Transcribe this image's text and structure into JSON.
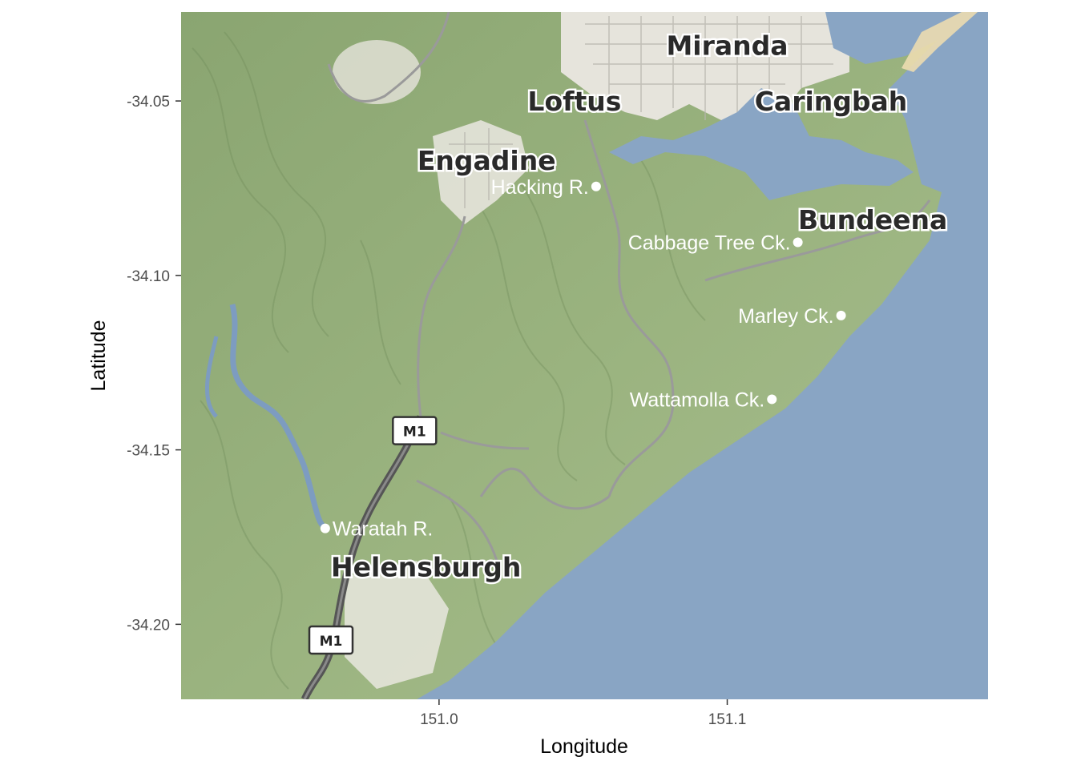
{
  "axes": {
    "x_title": "Longitude",
    "y_title": "Latitude",
    "x_ticks": [
      {
        "value": 151.0,
        "label": "151.0"
      },
      {
        "value": 151.1,
        "label": "151.1"
      }
    ],
    "y_ticks": [
      {
        "value": -34.05,
        "label": "-34.05"
      },
      {
        "value": -34.1,
        "label": "-34.10"
      },
      {
        "value": -34.15,
        "label": "-34.15"
      },
      {
        "value": -34.2,
        "label": "-34.20"
      }
    ],
    "xlim": [
      150.9105,
      151.1905
    ],
    "ylim": [
      -34.2215,
      -34.0245
    ]
  },
  "map": {
    "place_labels": [
      {
        "name": "Miranda",
        "lon": 151.1,
        "lat": -34.034
      },
      {
        "name": "Loftus",
        "lon": 151.047,
        "lat": -34.05
      },
      {
        "name": "Caringbah",
        "lon": 151.136,
        "lat": -34.05
      },
      {
        "name": "Engadine",
        "lon": 151.0165,
        "lat": -34.067
      },
      {
        "name": "Bundeena",
        "lon": 151.1505,
        "lat": -34.084
      },
      {
        "name": "Helensburgh",
        "lon": 150.9955,
        "lat": -34.1835
      }
    ],
    "road_shields": [
      {
        "label": "M1",
        "lon": 150.9915,
        "lat": -34.1445
      },
      {
        "label": "M1",
        "lon": 150.9625,
        "lat": -34.2045
      }
    ],
    "colors": {
      "land": "#97b07c",
      "water": "#89a5c4",
      "urban": "#e8e6df",
      "road": "#9a9a9a",
      "motorway": "#555555"
    }
  },
  "sites": [
    {
      "name": "Hacking R.",
      "lon": 151.0545,
      "lat": -34.0745
    },
    {
      "name": "Cabbage Tree Ck.",
      "lon": 151.1245,
      "lat": -34.0905
    },
    {
      "name": "Marley Ck.",
      "lon": 151.1395,
      "lat": -34.1115
    },
    {
      "name": "Wattamolla Ck.",
      "lon": 151.1155,
      "lat": -34.1355
    },
    {
      "name": "Waratah R.",
      "lon": 150.9605,
      "lat": -34.1725
    }
  ]
}
